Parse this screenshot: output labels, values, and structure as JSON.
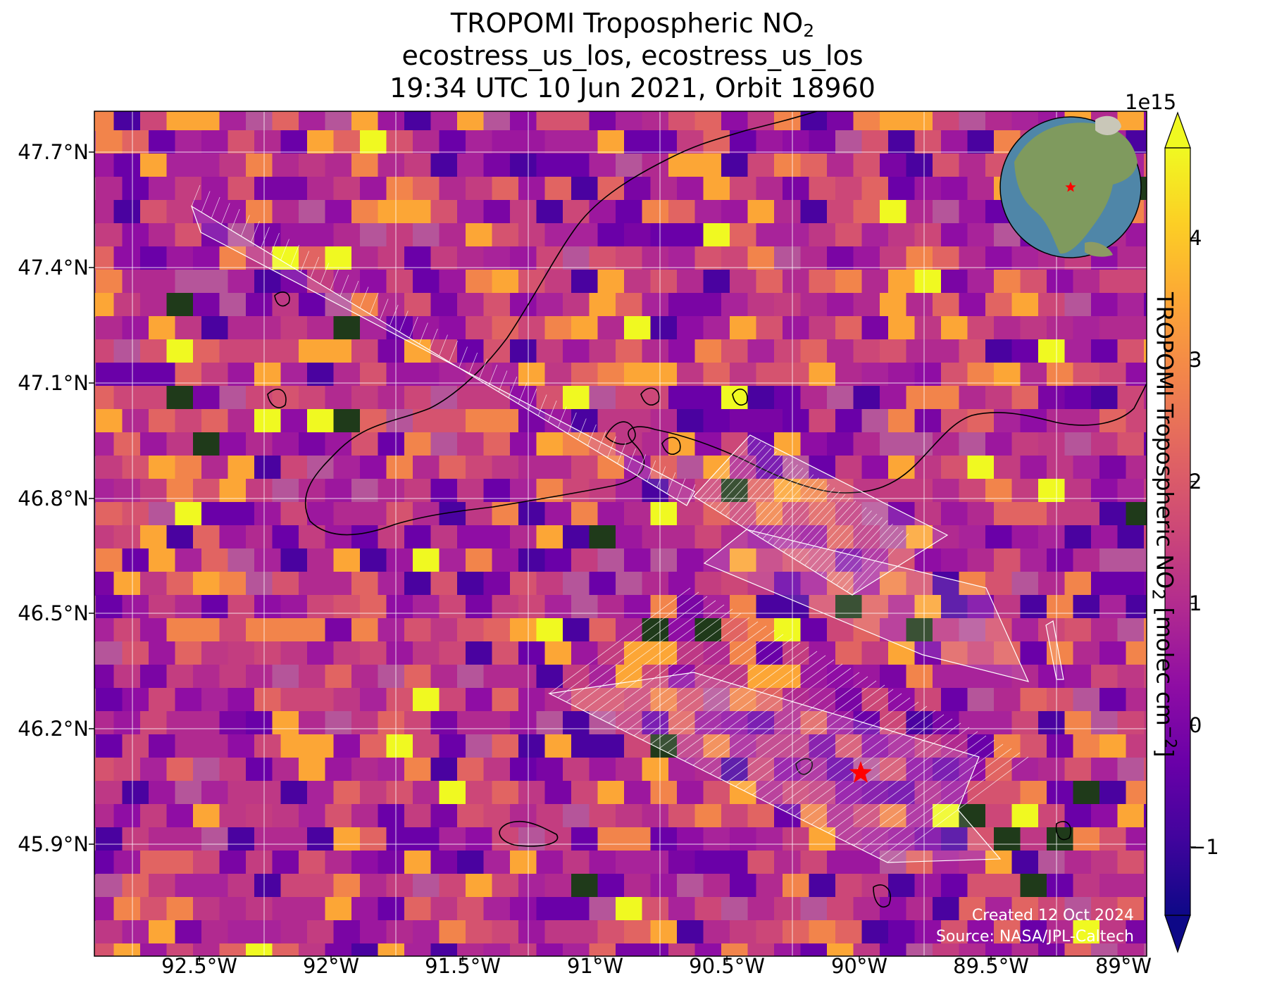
{
  "title": {
    "line1_prefix": "TROPOMI Tropospheric NO",
    "line1_sub": "2",
    "line2": "ecostress_us_los, ecostress_us_los",
    "line3": "19:34 UTC 10 Jun 2021, Orbit 18960"
  },
  "lat_labels": [
    "47.7°N",
    "47.4°N",
    "47.1°N",
    "46.8°N",
    "46.5°N",
    "46.2°N",
    "45.9°N"
  ],
  "lon_labels": [
    "92.5°W",
    "92°W",
    "91.5°W",
    "91°W",
    "90.5°W",
    "90°W",
    "89.5°W",
    "89°W"
  ],
  "colorbar": {
    "label_prefix": "TROPOMI Tropospheric NO",
    "label_sub": "2",
    "label_mid": " [molec cm",
    "label_sup": "−2",
    "label_suffix": "]",
    "exponent": "1e15",
    "ticks": [
      "4",
      "3",
      "2",
      "1",
      "0",
      "−1"
    ],
    "colormap": "plasma",
    "range": [
      -1.5,
      4.8
    ]
  },
  "credit": {
    "line1": "Created 12 Oct 2024",
    "line2": "Source: NASA/JPL-Caltech"
  },
  "marker": {
    "type": "star",
    "color": "#ff0000"
  },
  "colors": {
    "grid": "#ffffff",
    "coastline": "#000000",
    "swath_outline": "#ffffff"
  }
}
